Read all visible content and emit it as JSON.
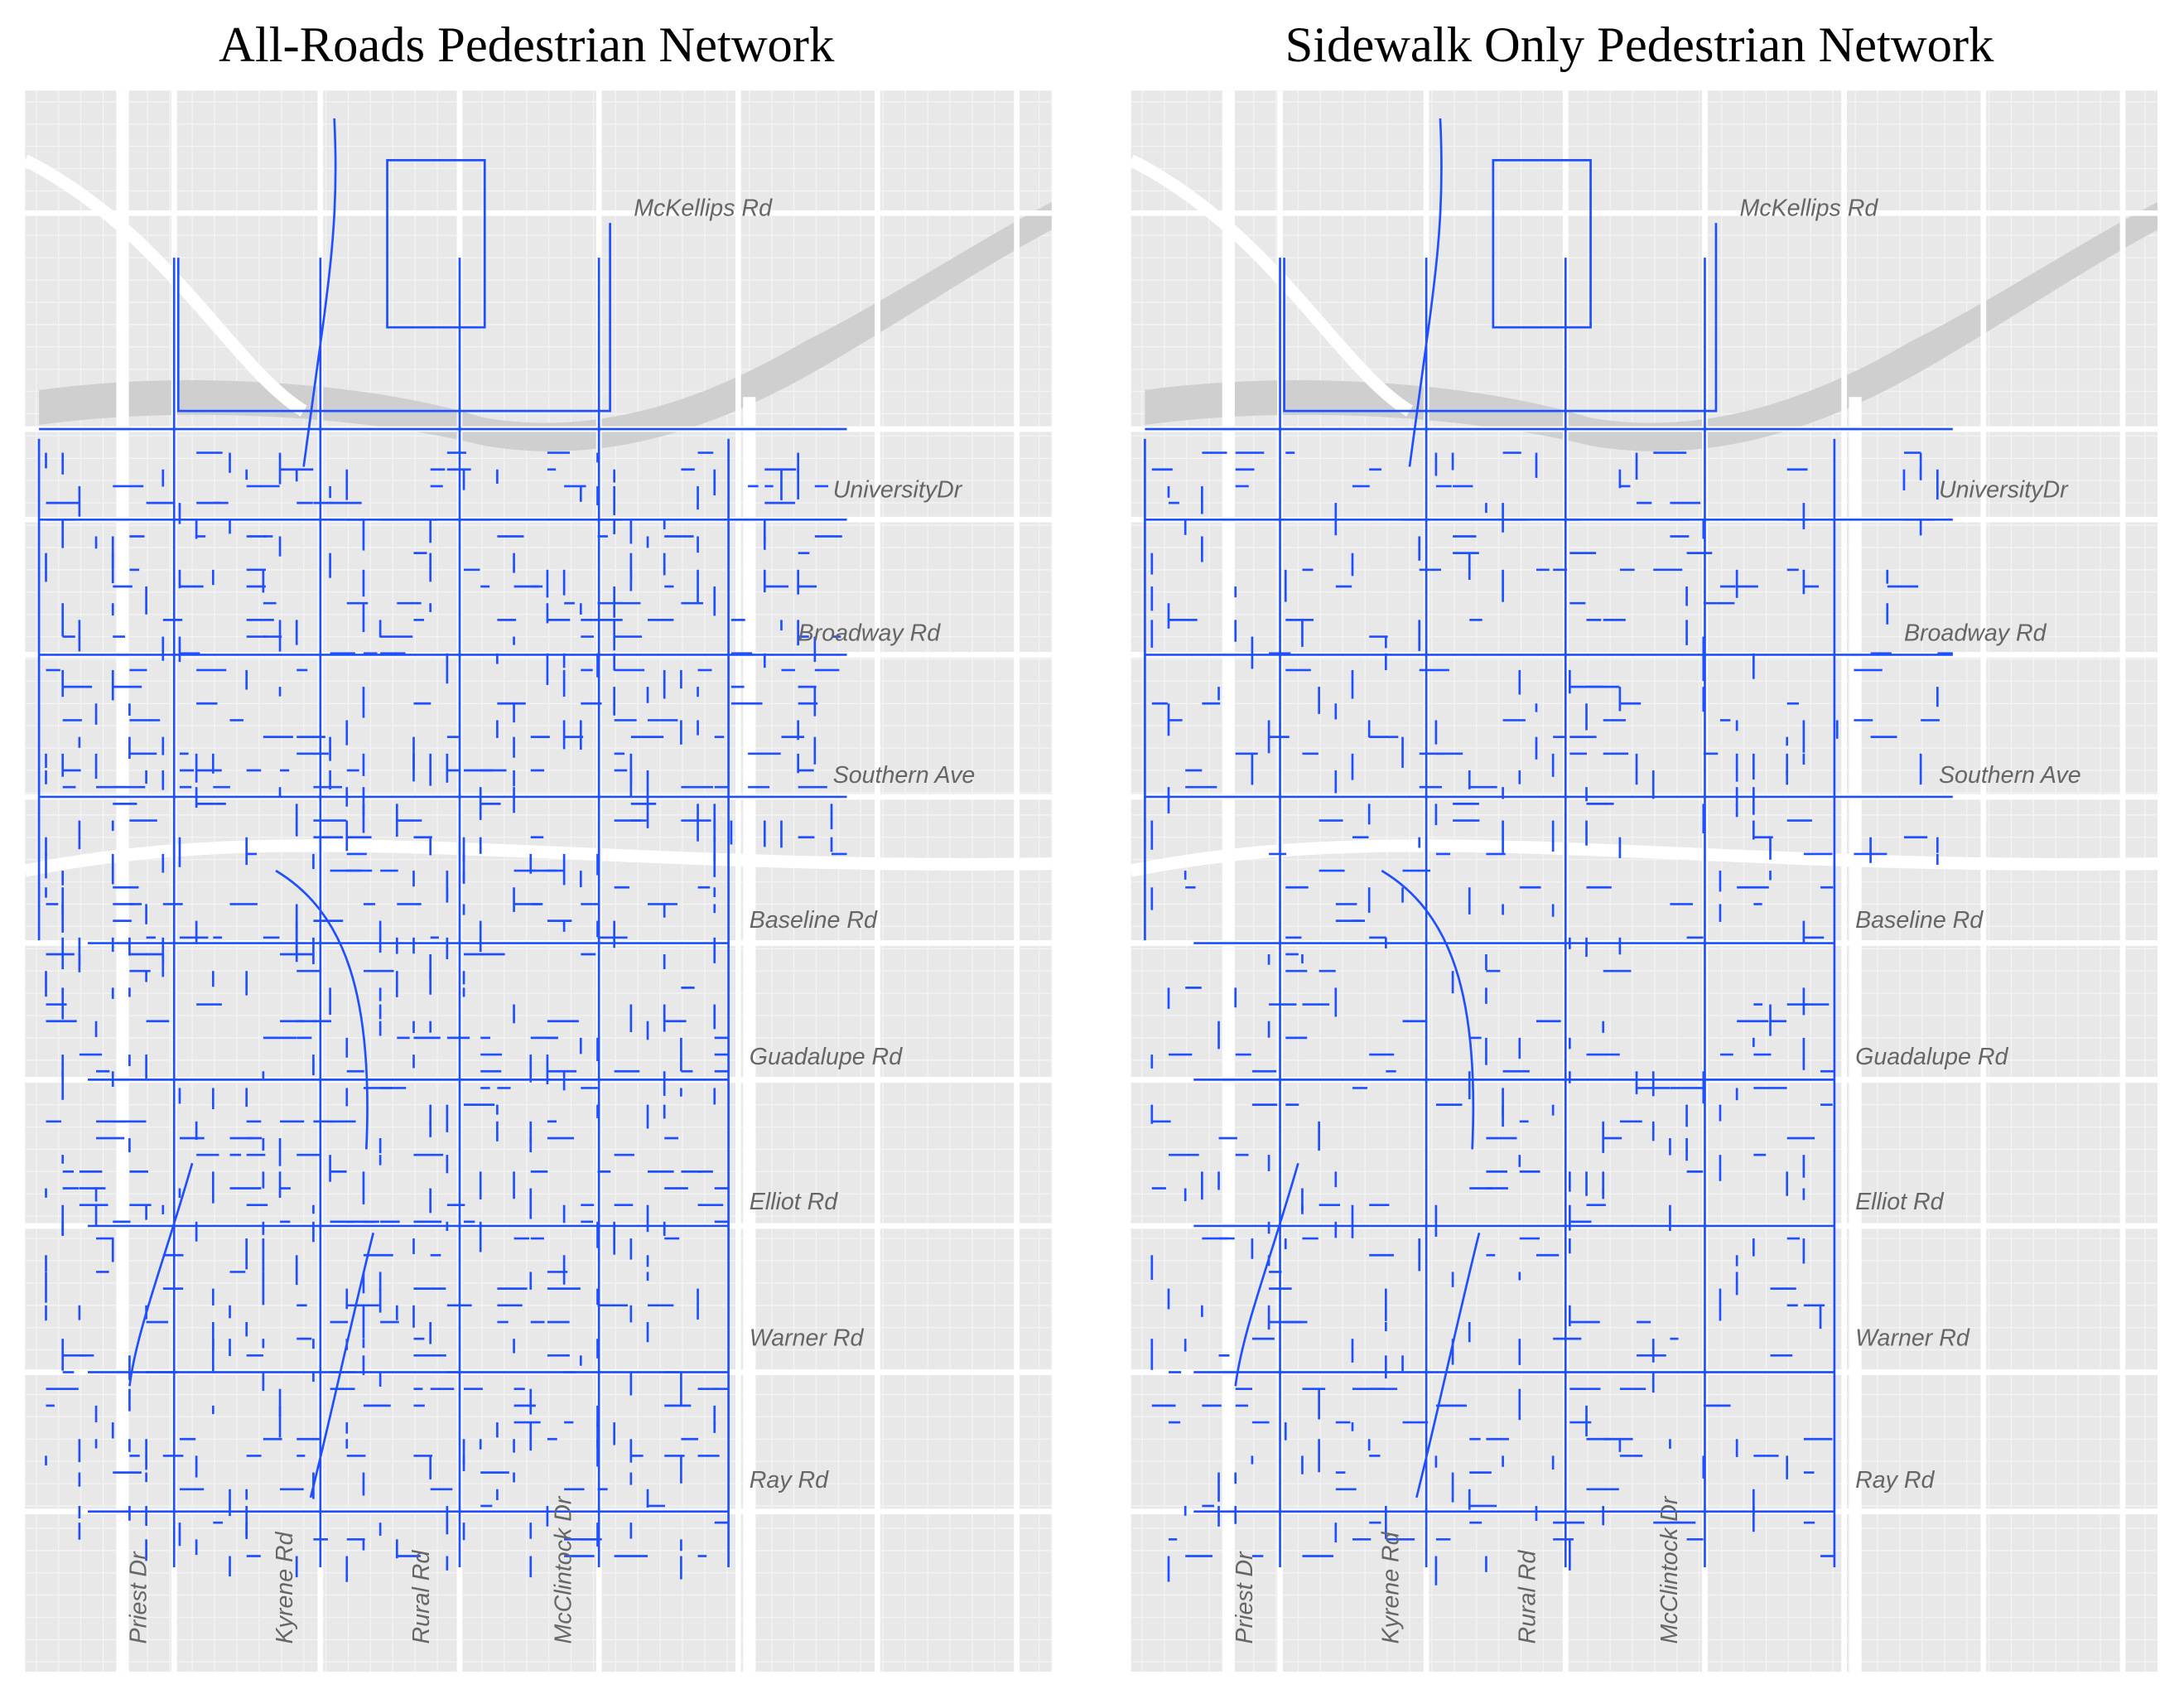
{
  "panels": [
    {
      "title": "All-Roads Pedestrian Network",
      "road_labels": [
        "McKellips Rd",
        "UniversityDr",
        "Broadway Rd",
        "Southern Ave",
        "Baseline Rd",
        "Guadalupe Rd",
        "Elliot Rd",
        "Warner Rd",
        "Ray Rd"
      ],
      "street_labels": [
        "Priest Dr",
        "Kyrene Rd",
        "Rural Rd",
        "McClintock Dr"
      ]
    },
    {
      "title": "Sidewalk Only Pedestrian Network",
      "road_labels": [
        "McKellips Rd",
        "UniversityDr",
        "Broadway Rd",
        "Southern Ave",
        "Baseline Rd",
        "Guadalupe Rd",
        "Elliot Rd",
        "Warner Rd",
        "Ray Rd"
      ],
      "street_labels": [
        "Priest Dr",
        "Kyrene Rd",
        "Rural Rd",
        "McClintock Dr"
      ]
    }
  ]
}
